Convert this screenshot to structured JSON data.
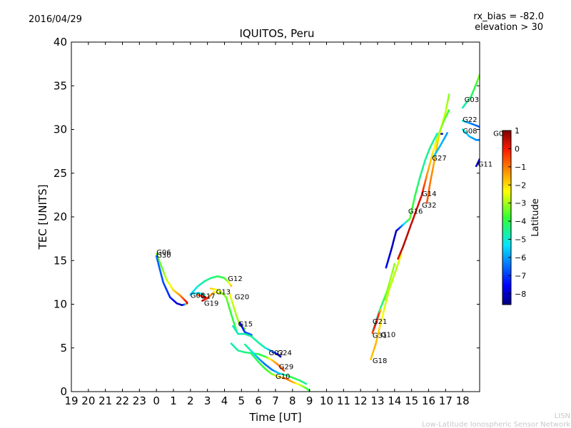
{
  "header": {
    "date": "2016/04/29",
    "rx_bias": "rx_bias = -82.0",
    "elevation": "elevation > 30"
  },
  "footer": {
    "lisn": "LISN",
    "network": "Low-Latitude Ionospheric Sensor Network"
  },
  "chart_data": {
    "type": "scatter",
    "title": "IQUITOS, Peru",
    "xlabel": "Time [UT]",
    "ylabel": "TEC [UNITS]",
    "xlim": [
      19,
      43
    ],
    "ylim": [
      0,
      40
    ],
    "x_tick_labels": [
      "19",
      "20",
      "21",
      "22",
      "23",
      "0",
      "1",
      "2",
      "3",
      "4",
      "5",
      "6",
      "7",
      "8",
      "9",
      "10",
      "11",
      "12",
      "13",
      "14",
      "15",
      "16",
      "17",
      "18"
    ],
    "y_ticks": [
      0,
      5,
      10,
      15,
      20,
      25,
      30,
      35,
      40
    ],
    "grid": false,
    "colorbar": {
      "label": "Latitude",
      "range": [
        -8.6,
        1.0
      ],
      "ticks": [
        1,
        0,
        -1,
        -2,
        -3,
        -4,
        -5,
        -6,
        -7,
        -8
      ],
      "tick_labels": [
        "1",
        "0",
        "−1",
        "−2",
        "−3",
        "−4",
        "−5",
        "−6",
        "−7",
        "−8"
      ]
    },
    "series": [
      {
        "name": "G06",
        "label": "G06",
        "label_at": [
          24.0,
          15.9
        ],
        "points": [
          [
            24.0,
            15.8,
            -3.2
          ],
          [
            24.3,
            14.3,
            -3.5
          ],
          [
            24.6,
            12.8,
            -2.8
          ],
          [
            25.0,
            11.6,
            -2.0
          ],
          [
            25.4,
            11.0,
            -1.2
          ],
          [
            25.8,
            10.2,
            0.3
          ]
        ]
      },
      {
        "name": "G30",
        "label": "G30",
        "label_at": [
          24.0,
          15.6
        ],
        "points": [
          [
            24.0,
            15.5,
            -6.5
          ],
          [
            24.4,
            12.5,
            -6.8
          ],
          [
            24.8,
            10.8,
            -7.2
          ],
          [
            25.2,
            10.1,
            -7.8
          ],
          [
            25.5,
            9.9,
            -8.4
          ],
          [
            25.7,
            10.0,
            -6.0
          ],
          [
            25.8,
            10.1,
            0.5
          ]
        ]
      },
      {
        "name": "G05",
        "label": "G05",
        "label_at": [
          26.0,
          11.0
        ],
        "points": [
          [
            26.1,
            11.2,
            -5.0
          ],
          [
            26.5,
            11.3,
            -5.5
          ],
          [
            26.8,
            11.0,
            -4.8
          ]
        ]
      },
      {
        "name": "G17",
        "label": "G17",
        "label_at": [
          26.6,
          10.9
        ],
        "points": [
          [
            26.4,
            11.1,
            -0.8
          ],
          [
            26.7,
            10.9,
            -0.2
          ],
          [
            27.0,
            10.7,
            0.4
          ]
        ]
      },
      {
        "name": "G19",
        "label": "G19",
        "label_at": [
          26.8,
          10.1
        ],
        "points": [
          [
            26.7,
            10.4,
            0.6
          ],
          [
            27.0,
            10.7,
            -0.3
          ],
          [
            27.4,
            11.4,
            -2.0
          ],
          [
            27.8,
            11.2,
            -3.2
          ]
        ]
      },
      {
        "name": "G12",
        "label": "G12",
        "label_at": [
          28.2,
          12.9
        ],
        "points": [
          [
            26.0,
            11.1,
            -5.8
          ],
          [
            26.4,
            12.0,
            -5.0
          ],
          [
            26.8,
            12.6,
            -4.6
          ],
          [
            27.2,
            13.0,
            -4.4
          ],
          [
            27.6,
            13.2,
            -4.2
          ],
          [
            28.0,
            13.0,
            -3.8
          ],
          [
            28.2,
            12.6,
            -3.0
          ],
          [
            28.4,
            12.1,
            -1.8
          ]
        ]
      },
      {
        "name": "G13",
        "label": "G13",
        "label_at": [
          27.5,
          11.4
        ],
        "points": [
          [
            27.2,
            11.8,
            -1.8
          ],
          [
            27.7,
            11.6,
            -2.6
          ],
          [
            28.1,
            10.8,
            -3.4
          ],
          [
            28.3,
            9.5,
            -3.8
          ],
          [
            28.5,
            8.2,
            -4.0
          ],
          [
            28.7,
            7.0,
            -3.8
          ]
        ]
      },
      {
        "name": "G20",
        "label": "G20",
        "label_at": [
          28.6,
          10.8
        ],
        "points": [
          [
            28.3,
            11.2,
            -2.4
          ],
          [
            28.5,
            10.0,
            -2.8
          ],
          [
            28.7,
            8.7,
            -3.0
          ],
          [
            28.9,
            7.6,
            -3.2
          ],
          [
            29.2,
            7.2,
            -3.4
          ]
        ]
      },
      {
        "name": "G15",
        "label": "G15",
        "label_at": [
          28.8,
          7.7
        ],
        "points": [
          [
            28.9,
            7.9,
            -8.2
          ],
          [
            29.2,
            6.8,
            -7.0
          ],
          [
            29.6,
            6.5,
            -6.5
          ]
        ]
      },
      {
        "name": "G24",
        "label": "G24",
        "label_at": [
          31.1,
          4.4
        ],
        "points": [
          [
            28.5,
            7.5,
            -5.0
          ],
          [
            28.8,
            6.6,
            -4.8
          ],
          [
            29.2,
            6.6,
            -4.6
          ],
          [
            29.6,
            6.3,
            -4.6
          ],
          [
            30.0,
            5.6,
            -4.6
          ],
          [
            30.4,
            5.0,
            -4.8
          ],
          [
            30.8,
            4.6,
            -6.5
          ],
          [
            31.1,
            4.3,
            -7.5
          ],
          [
            31.3,
            4.0,
            -8.3
          ]
        ]
      },
      {
        "name": "G02",
        "label": "G02",
        "label_at": [
          30.6,
          4.4
        ],
        "points": [
          [
            28.4,
            5.5,
            -4.8
          ],
          [
            28.8,
            4.7,
            -4.6
          ],
          [
            29.2,
            4.5,
            -4.4
          ],
          [
            29.6,
            4.4,
            -4.2
          ],
          [
            30.0,
            4.3,
            -4.0
          ],
          [
            30.4,
            4.0,
            -3.8
          ],
          [
            30.8,
            3.6,
            -1.8
          ],
          [
            31.2,
            3.0,
            -1.0
          ],
          [
            31.5,
            2.4,
            -0.5
          ]
        ]
      },
      {
        "name": "G29",
        "label": "G29",
        "label_at": [
          31.2,
          2.8
        ],
        "points": [
          [
            29.2,
            5.4,
            -4.5
          ],
          [
            29.6,
            4.6,
            -5.0
          ],
          [
            30.0,
            3.8,
            -6.0
          ],
          [
            30.4,
            3.1,
            -6.5
          ],
          [
            30.8,
            2.5,
            -6.4
          ],
          [
            31.2,
            2.1,
            -5.5
          ],
          [
            31.6,
            1.9,
            -4.5
          ],
          [
            32.0,
            1.6,
            -4.0
          ],
          [
            32.4,
            1.3,
            -4.2
          ],
          [
            32.8,
            0.9,
            -4.6
          ]
        ]
      },
      {
        "name": "G10",
        "label": "G10",
        "label_at": [
          31.0,
          1.7
        ],
        "points": [
          [
            29.6,
            4.3,
            -4.2
          ],
          [
            30.0,
            3.4,
            -4.0
          ],
          [
            30.4,
            2.6,
            -3.8
          ],
          [
            30.8,
            2.0,
            -3.4
          ],
          [
            31.2,
            1.7,
            -2.2
          ],
          [
            31.6,
            1.5,
            -0.8
          ],
          [
            32.0,
            1.1,
            -1.5
          ],
          [
            32.4,
            0.8,
            -2.6
          ],
          [
            32.8,
            0.4,
            -3.6
          ],
          [
            33.0,
            0.1,
            -4.0
          ]
        ]
      },
      {
        "name": "G21",
        "label": "G21",
        "label_at": [
          36.7,
          8.0
        ],
        "points": [
          [
            36.7,
            6.8,
            -4.8
          ],
          [
            36.9,
            8.0,
            -5.0
          ],
          [
            37.1,
            9.2,
            -4.6
          ],
          [
            37.3,
            10.2,
            -4.2
          ],
          [
            37.5,
            11.2,
            -3.8
          ]
        ]
      },
      {
        "name": "G31",
        "label": "G31",
        "label_at": [
          36.7,
          6.4
        ],
        "points": [
          [
            36.7,
            6.7,
            -0.6
          ],
          [
            36.9,
            7.8,
            0.4
          ],
          [
            37.1,
            9.0,
            -0.4
          ],
          [
            37.2,
            9.4,
            -2.0
          ]
        ]
      },
      {
        "name": "G10b",
        "label": "G10",
        "label_at": [
          37.2,
          6.5
        ],
        "points": [
          [
            37.4,
            10.5,
            -3.6
          ],
          [
            37.6,
            11.8,
            -3.2
          ],
          [
            37.8,
            13.2,
            -3.0
          ],
          [
            38.0,
            14.6,
            -3.2
          ]
        ]
      },
      {
        "name": "G18",
        "label": "G18",
        "label_at": [
          36.7,
          3.5
        ],
        "points": [
          [
            36.6,
            3.7,
            -1.8
          ],
          [
            36.9,
            5.5,
            -1.6
          ],
          [
            37.1,
            7.2,
            -2.0
          ],
          [
            37.4,
            9.5,
            -2.6
          ],
          [
            37.7,
            11.8,
            -2.8
          ],
          [
            38.1,
            14.0,
            -2.9
          ],
          [
            38.4,
            15.8,
            -2.5
          ]
        ]
      },
      {
        "name": "G16",
        "label": "G16",
        "label_at": [
          38.8,
          20.6
        ],
        "points": [
          [
            37.5,
            14.2,
            -7.5
          ],
          [
            37.8,
            16.2,
            -8.0
          ],
          [
            38.1,
            18.4,
            -8.2
          ],
          [
            38.9,
            19.8,
            -3.5
          ],
          [
            39.2,
            22.4,
            -4.0
          ],
          [
            39.5,
            24.6,
            -4.4
          ],
          [
            39.8,
            26.5,
            -4.6
          ],
          [
            40.1,
            28.0,
            -4.4
          ],
          [
            40.5,
            29.5,
            -5.0
          ],
          [
            40.8,
            29.5,
            -8.0
          ]
        ]
      },
      {
        "name": "G32",
        "label": "G32",
        "label_at": [
          39.6,
          21.3
        ],
        "points": [
          [
            39.9,
            21.6,
            -0.6
          ],
          [
            40.1,
            24.0,
            -1.0
          ],
          [
            40.3,
            26.0,
            -1.4
          ],
          [
            40.5,
            28.2,
            -1.8
          ],
          [
            40.7,
            30.0,
            -2.2
          ],
          [
            41.0,
            32.0,
            -2.8
          ],
          [
            41.2,
            34.0,
            -3.2
          ]
        ]
      },
      {
        "name": "G14",
        "label": "G14",
        "label_at": [
          39.6,
          22.6
        ],
        "points": [
          [
            38.2,
            15.2,
            0.2
          ],
          [
            38.5,
            16.6,
            0.6
          ],
          [
            39.6,
            22.5,
            0.2
          ],
          [
            39.9,
            24.8,
            -1.2
          ],
          [
            40.2,
            27.0,
            -2.0
          ],
          [
            40.5,
            29.0,
            -2.8
          ],
          [
            40.9,
            31.0,
            -3.4
          ],
          [
            41.2,
            32.2,
            -3.8
          ]
        ]
      },
      {
        "name": "G27",
        "label": "G27",
        "label_at": [
          40.2,
          26.7
        ],
        "points": [
          [
            40.3,
            26.9,
            -5.6
          ],
          [
            40.7,
            28.2,
            -5.8
          ],
          [
            41.1,
            29.6,
            -6.0
          ]
        ]
      },
      {
        "name": "G03",
        "label": "G03",
        "label_at": [
          42.1,
          33.4
        ],
        "points": [
          [
            42.0,
            32.5,
            -4.8
          ],
          [
            42.5,
            33.8,
            -4.2
          ],
          [
            42.8,
            35.2,
            -3.8
          ],
          [
            43.1,
            36.8,
            -2.8
          ],
          [
            43.4,
            38.2,
            -1.2
          ],
          [
            43.7,
            39.2,
            -0.2
          ],
          [
            43.9,
            39.4,
            0.4
          ]
        ]
      },
      {
        "name": "G22",
        "label": "G22",
        "label_at": [
          42.0,
          31.1
        ],
        "points": [
          [
            42.0,
            31.0,
            -5.0
          ],
          [
            42.3,
            30.8,
            -6.0
          ],
          [
            42.6,
            30.6,
            -6.4
          ],
          [
            43.0,
            30.3,
            -6.6
          ],
          [
            43.4,
            30.0,
            -6.8
          ],
          [
            43.7,
            29.4,
            -7.0
          ],
          [
            43.9,
            28.9,
            -7.3
          ]
        ]
      },
      {
        "name": "G08",
        "label": "G08",
        "label_at": [
          42.0,
          29.8
        ],
        "points": [
          [
            42.0,
            30.0,
            -5.0
          ],
          [
            42.4,
            29.2,
            -5.8
          ],
          [
            42.8,
            28.8,
            -6.2
          ],
          [
            43.2,
            28.8,
            -6.6
          ],
          [
            43.5,
            29.1,
            -7.0
          ],
          [
            43.8,
            29.5,
            -7.4
          ]
        ]
      },
      {
        "name": "G01",
        "label": "G01",
        "label_at": [
          43.8,
          29.5
        ],
        "points": [
          [
            43.1,
            27.0,
            -7.5
          ],
          [
            43.4,
            28.2,
            -7.8
          ],
          [
            43.7,
            29.6,
            -8.2
          ],
          [
            43.9,
            30.8,
            -8.5
          ],
          [
            44.0,
            31.5,
            -8.6
          ]
        ]
      },
      {
        "name": "G11",
        "label": "G11",
        "label_at": [
          42.9,
          26.0
        ],
        "points": [
          [
            42.8,
            25.8,
            -8.0
          ],
          [
            43.0,
            26.6,
            -8.2
          ],
          [
            43.2,
            27.4,
            -8.3
          ]
        ]
      }
    ]
  }
}
